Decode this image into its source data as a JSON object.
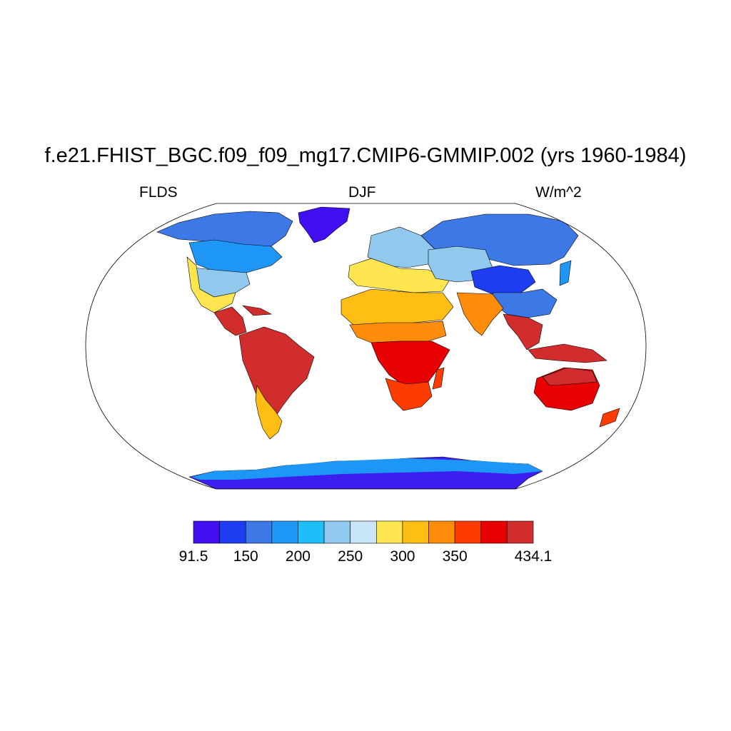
{
  "title": "f.e21.FHIST_BGC.f09_f09_mg17.CMIP6-GMMIP.002 (yrs 1960-1984)",
  "subtitle_left": "FLDS",
  "subtitle_center": "DJF",
  "subtitle_right": "W/m^2",
  "projection": "Robinson",
  "colorbar": {
    "colors": [
      "#4210f0",
      "#1e3cf0",
      "#3c78e6",
      "#1e96f5",
      "#1ebef8",
      "#91c8ee",
      "#c8e6f8",
      "#ffe650",
      "#ffbe14",
      "#ff8c0a",
      "#ff3c00",
      "#e60000",
      "#d22d2d"
    ],
    "labels": [
      "91.5",
      "150",
      "200",
      "250",
      "300",
      "350",
      "434.1"
    ],
    "label_positions": [
      0,
      2,
      4,
      6,
      8,
      10,
      13
    ],
    "min": 91.5,
    "max": 434.1
  },
  "regions": {
    "antarctica": "#3c1ef0",
    "greenland": "#4210f0",
    "canada_north": "#3c78e6",
    "canada_south": "#1e96f5",
    "usa": "#91c8ee",
    "usa_south": "#ffe650",
    "central_america": "#d22d2d",
    "south_america": "#d22d2d",
    "patagonia": "#ffbe14",
    "europe": "#91c8ee",
    "mediterranean": "#ffe650",
    "sahara": "#ffbe14",
    "sahel": "#ff8c0a",
    "central_africa": "#e60000",
    "southern_africa": "#ff3c00",
    "russia": "#3c78e6",
    "mongolia": "#1e3cf0",
    "india": "#ff8c0a",
    "southeast_asia": "#d22d2d",
    "australia": "#e60000",
    "australia_north": "#d22d2d"
  }
}
